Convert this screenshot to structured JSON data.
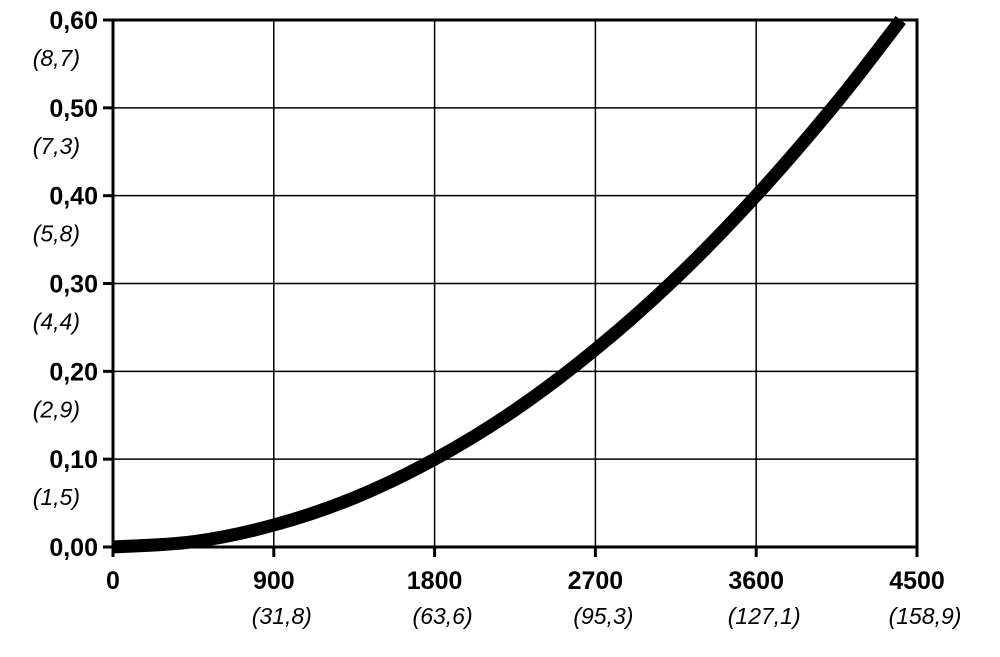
{
  "chart_data": {
    "type": "line",
    "title": "",
    "xlabel": "",
    "ylabel": "",
    "xlim": [
      0,
      4500
    ],
    "ylim": [
      0,
      0.6
    ],
    "grid": true,
    "x_ticks": [
      {
        "value": 0,
        "label": "0",
        "sublabel": ""
      },
      {
        "value": 900,
        "label": "900",
        "sublabel": "(31,8)"
      },
      {
        "value": 1800,
        "label": "1800",
        "sublabel": "(63,6)"
      },
      {
        "value": 2700,
        "label": "2700",
        "sublabel": "(95,3)"
      },
      {
        "value": 3600,
        "label": "3600",
        "sublabel": "(127,1)"
      },
      {
        "value": 4500,
        "label": "4500",
        "sublabel": "(158,9)"
      }
    ],
    "y_ticks": [
      {
        "value": 0,
        "label": "0,00",
        "sublabel": ""
      },
      {
        "value": 0.1,
        "label": "0,10",
        "sublabel": "(1,5)"
      },
      {
        "value": 0.2,
        "label": "0,20",
        "sublabel": "(2,9)"
      },
      {
        "value": 0.3,
        "label": "0,30",
        "sublabel": "(4,4)"
      },
      {
        "value": 0.4,
        "label": "0,40",
        "sublabel": "(5,8)"
      },
      {
        "value": 0.5,
        "label": "0,50",
        "sublabel": "(7,3)"
      },
      {
        "value": 0.6,
        "label": "0,60",
        "sublabel": "(8,7)"
      }
    ],
    "series": [
      {
        "color": "#000000",
        "x": [
          0,
          450,
          900,
          1350,
          1800,
          2250,
          2700,
          3150,
          3600,
          4050,
          4409
        ],
        "y": [
          0,
          0.006,
          0.025,
          0.056,
          0.1,
          0.156,
          0.225,
          0.306,
          0.4,
          0.506,
          0.6
        ]
      }
    ]
  }
}
